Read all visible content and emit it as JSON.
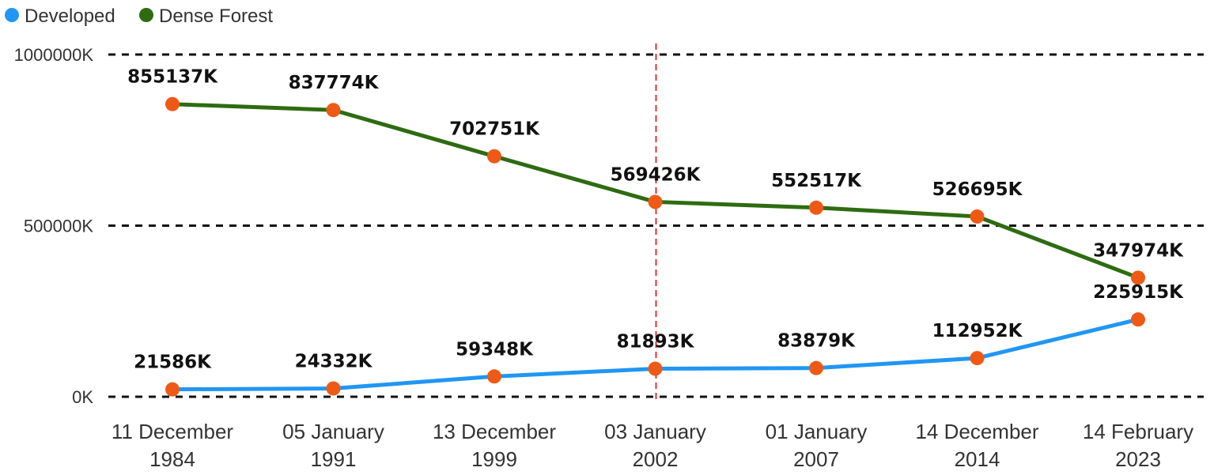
{
  "chart_data": {
    "type": "line",
    "categories": [
      "11 December 1984",
      "05 January 1991",
      "13 December 1999",
      "03 January 2002",
      "01 January 2007",
      "14 December 2014",
      "14 February 2023"
    ],
    "category_lines": [
      [
        "11 December",
        "1984"
      ],
      [
        "05 January",
        "1991"
      ],
      [
        "13 December",
        "1999"
      ],
      [
        "03 January",
        "2002"
      ],
      [
        "01 January",
        "2007"
      ],
      [
        "14 December",
        "2014"
      ],
      [
        "14 February",
        "2023"
      ]
    ],
    "series": [
      {
        "name": "Developed",
        "color": "#2196F3",
        "values": [
          21586,
          24332,
          59348,
          81893,
          83879,
          112952,
          225915
        ],
        "labels": [
          "21586K",
          "24332K",
          "59348K",
          "81893K",
          "83879K",
          "112952K",
          "225915K"
        ]
      },
      {
        "name": "Dense Forest",
        "color": "#2E6B12",
        "values": [
          855137,
          837774,
          702751,
          569426,
          552517,
          526695,
          347974
        ],
        "labels": [
          "855137K",
          "837774K",
          "702751K",
          "569426K",
          "552517K",
          "526695K",
          "347974K"
        ]
      }
    ],
    "marker_color": "#EE5A16",
    "y_ticks": [
      0,
      500000,
      1000000
    ],
    "y_tick_labels": [
      "0K",
      "500000K",
      "1000000K"
    ],
    "ylim": [
      0,
      1000000
    ],
    "grid": "dashed horizontal",
    "legend": "top-left",
    "reference_line": {
      "category": "03 January 2002",
      "color": "#E03030",
      "style": "dashed"
    }
  }
}
